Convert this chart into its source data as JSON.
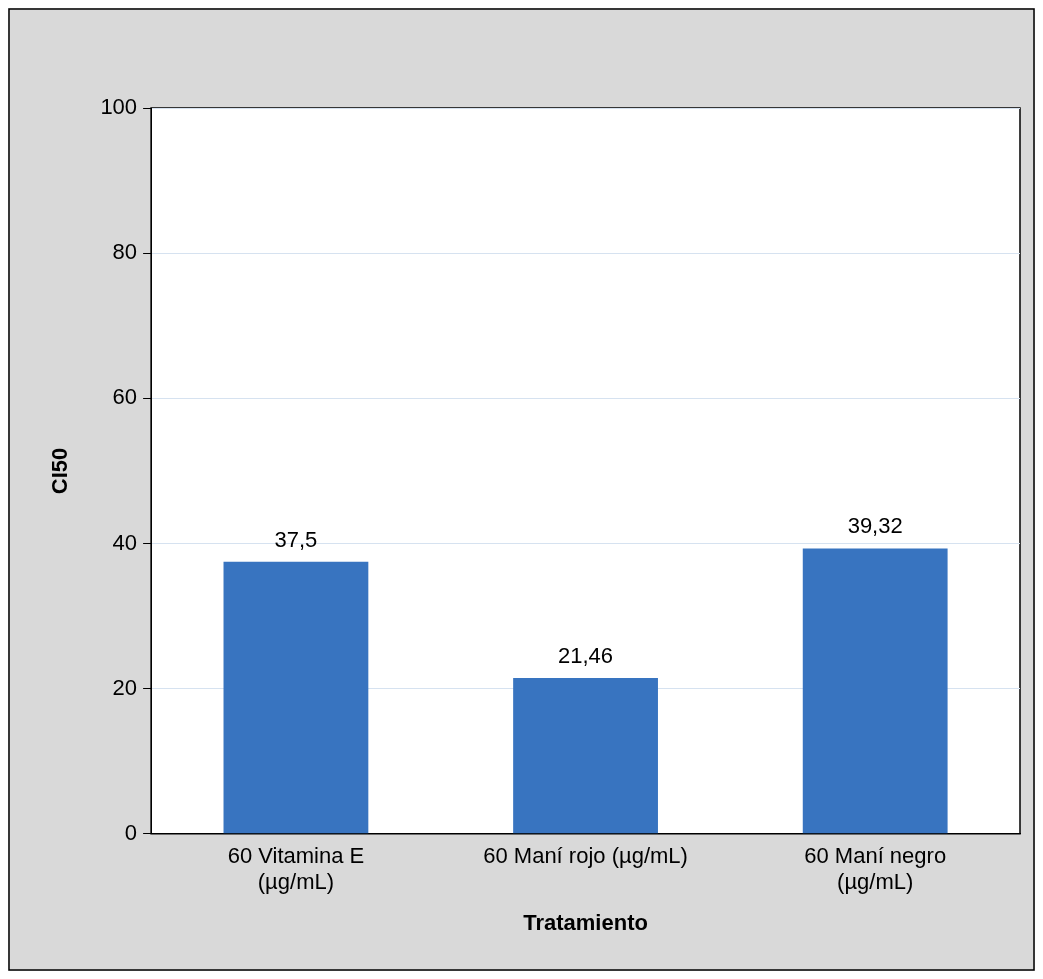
{
  "chart_data": {
    "type": "bar",
    "xlabel": "Tratamiento",
    "ylabel": "CI50",
    "categories": [
      "60 Vitamina E\n(µg/mL)",
      "60 Maní rojo (µg/mL)",
      "60 Maní negro\n(µg/mL)"
    ],
    "values": [
      37.5,
      21.46,
      39.32
    ],
    "value_labels": [
      "37,5",
      "21,46",
      "39,32"
    ],
    "color": "#3874c0",
    "ylim": [
      0,
      100
    ],
    "yticks": [
      0,
      20,
      40,
      60,
      80,
      100
    ],
    "grid": "y",
    "legend": false
  }
}
